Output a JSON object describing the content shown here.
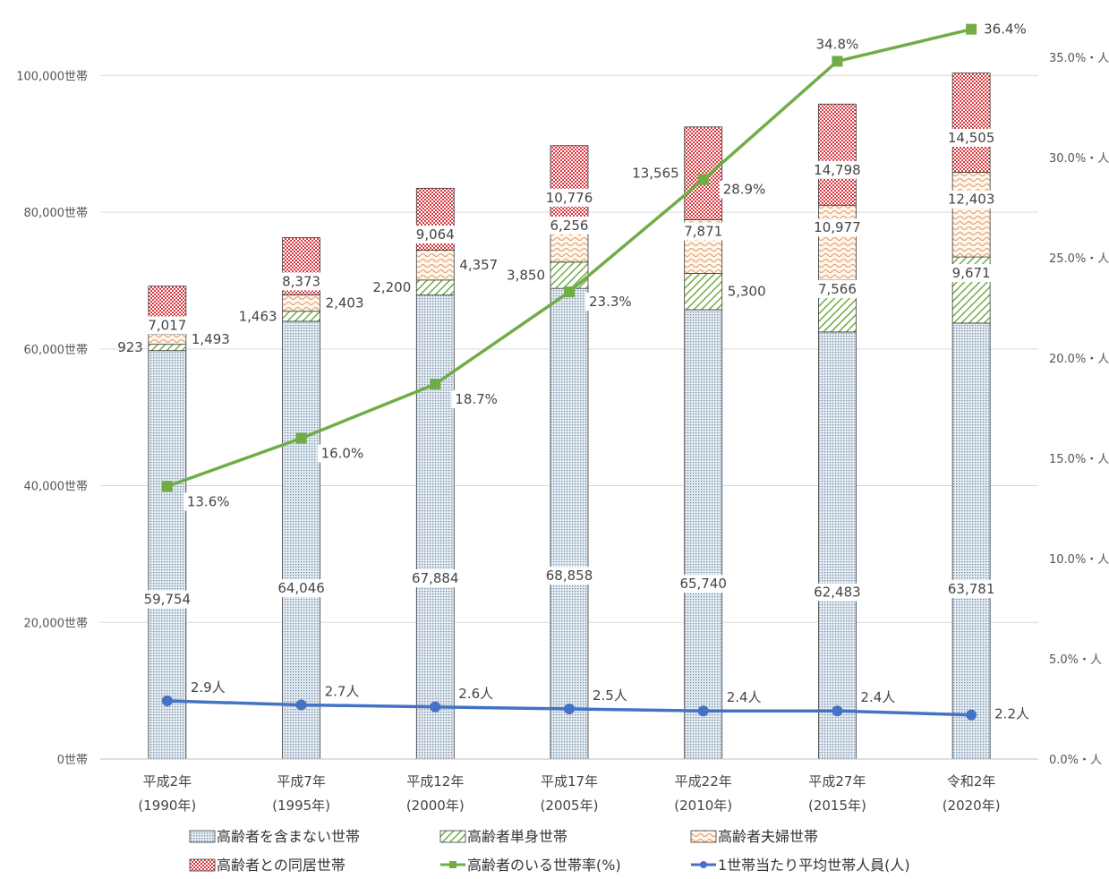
{
  "chart_data": {
    "type": "bar",
    "stacked": true,
    "categories": [
      {
        "line1": "平成2年",
        "line2": "(1990年)"
      },
      {
        "line1": "平成7年",
        "line2": "(1995年)"
      },
      {
        "line1": "平成12年",
        "line2": "(2000年)"
      },
      {
        "line1": "平成17年",
        "line2": "(2005年)"
      },
      {
        "line1": "平成22年",
        "line2": "(2010年)"
      },
      {
        "line1": "平成27年",
        "line2": "(2015年)"
      },
      {
        "line1": "令和2年",
        "line2": "(2020年)"
      }
    ],
    "series": [
      {
        "name": "高齢者を含まない世帯",
        "axis": "left",
        "pattern": "dots",
        "color": "#9db3c8",
        "values": [
          59754,
          64046,
          67884,
          68858,
          65740,
          62483,
          63781
        ],
        "labels": [
          "59,754",
          "64,046",
          "67,884",
          "68,858",
          "65,740",
          "62,483",
          "63,781"
        ]
      },
      {
        "name": "高齢者単身世帯",
        "axis": "left",
        "pattern": "diagonal",
        "color": "#70ad47",
        "values": [
          923,
          1463,
          2200,
          3850,
          5300,
          7566,
          9671
        ],
        "labels": [
          "923",
          "1,463",
          "2,200",
          "3,850",
          "5,300",
          "7,566",
          "9,671"
        ]
      },
      {
        "name": "高齢者夫婦世帯",
        "axis": "left",
        "pattern": "wave",
        "color": "#e8a060",
        "values": [
          1493,
          2403,
          4357,
          6256,
          7871,
          10977,
          12403
        ],
        "labels": [
          "1,493",
          "2,403",
          "4,357",
          "6,256",
          "7,871",
          "10,977",
          "12,403"
        ]
      },
      {
        "name": "高齢者との同居世帯",
        "axis": "left",
        "pattern": "checker",
        "color": "#d9363e",
        "values": [
          7017,
          8373,
          9064,
          10776,
          13565,
          14798,
          14505
        ],
        "labels": [
          "7,017",
          "8,373",
          "9,064",
          "10,776",
          "13,565",
          "14,798",
          "14,505"
        ]
      }
    ],
    "lines": [
      {
        "name": "高齢者のいる世帯率(%)",
        "axis": "right",
        "color": "#70ad47",
        "marker": "square",
        "values": [
          13.6,
          16.0,
          18.7,
          23.3,
          28.9,
          34.8,
          36.4
        ],
        "labels": [
          "13.6%",
          "16.0%",
          "18.7%",
          "23.3%",
          "28.9%",
          "34.8%",
          "36.4%"
        ]
      },
      {
        "name": "1世帯当たり平均世帯人員(人)",
        "axis": "right",
        "color": "#4472c4",
        "marker": "circle",
        "values": [
          2.9,
          2.7,
          2.6,
          2.5,
          2.4,
          2.4,
          2.2
        ],
        "labels": [
          "2.9人",
          "2.7人",
          "2.6人",
          "2.5人",
          "2.4人",
          "2.4人",
          "2.2人"
        ]
      }
    ],
    "left_axis": {
      "ylim": [
        0,
        110000
      ],
      "ticks": [
        0,
        20000,
        40000,
        60000,
        80000,
        100000
      ],
      "tick_labels": [
        "0世帯",
        "20,000世帯",
        "40,000世帯",
        "60,000世帯",
        "80,000世帯",
        "100,000世帯"
      ]
    },
    "right_axis": {
      "ylim": [
        0,
        37.5
      ],
      "ticks": [
        0,
        5,
        10,
        15,
        20,
        25,
        30,
        35
      ],
      "tick_labels": [
        "0.0%・人",
        "5.0%・人",
        "10.0%・人",
        "15.0%・人",
        "20.0%・人",
        "25.0%・人",
        "30.0%・人",
        "35.0%・人"
      ]
    },
    "grid": true,
    "legend_position": "bottom",
    "title": "",
    "xlabel": "",
    "ylabel": ""
  }
}
